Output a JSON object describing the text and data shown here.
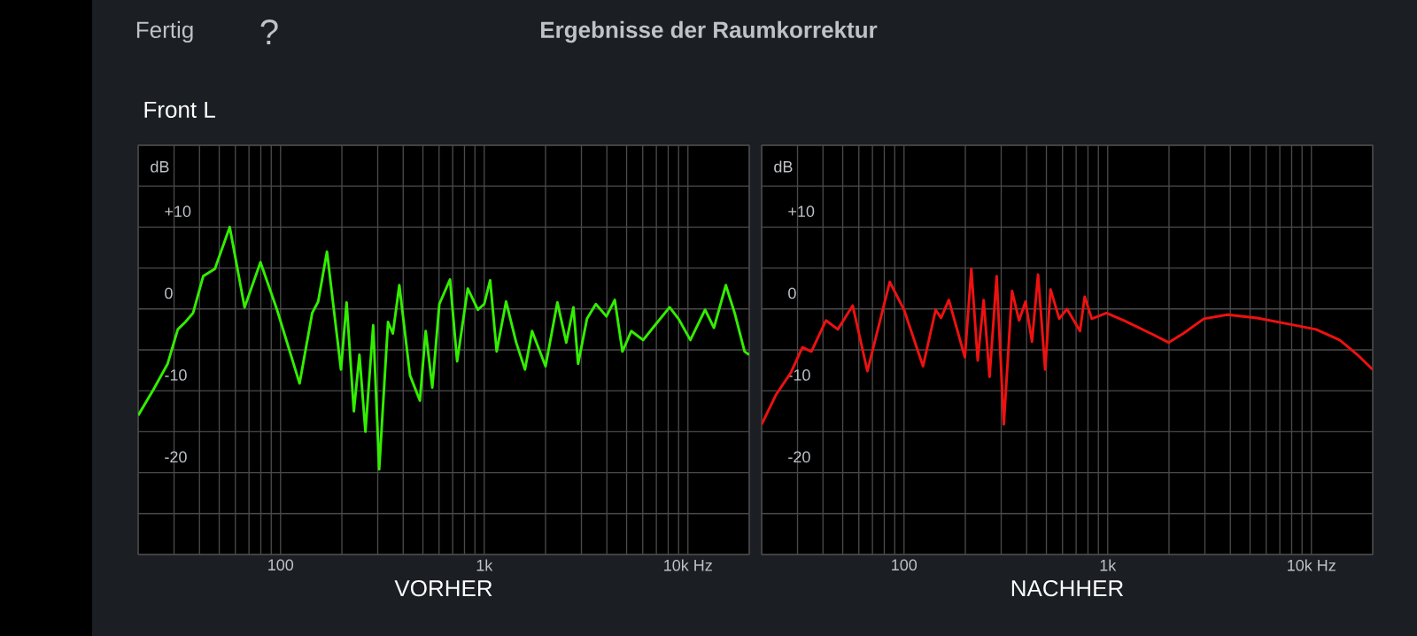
{
  "chart_data": [
    {
      "type": "line",
      "title": "Ergebnisse der Raumkorrektur",
      "subtitle": "Front L",
      "annotations": [
        "Fertig",
        "?"
      ],
      "xlabel": "VORHER",
      "ylabel": "dB",
      "log": "x",
      "grid": true,
      "xlim": [
        20,
        20000
      ],
      "ylim": [
        -30,
        20
      ],
      "xticks": [
        {
          "value": 20,
          "label": null
        },
        {
          "value": 30,
          "label": null
        },
        {
          "value": 40,
          "label": null
        },
        {
          "value": 50,
          "label": null
        },
        {
          "value": 60,
          "label": null
        },
        {
          "value": 70,
          "label": null
        },
        {
          "value": 80,
          "label": null
        },
        {
          "value": 90,
          "label": null
        },
        100,
        {
          "value": 200,
          "label": null
        },
        {
          "value": 300,
          "label": null
        },
        {
          "value": 400,
          "label": null
        },
        {
          "value": 500,
          "label": null
        },
        {
          "value": 600,
          "label": null
        },
        {
          "value": 700,
          "label": null
        },
        {
          "value": 800,
          "label": null
        },
        {
          "value": 900,
          "label": null
        },
        {
          "value": 1000,
          "label": "1k"
        },
        {
          "value": 2000,
          "label": null
        },
        {
          "value": 3000,
          "label": null
        },
        {
          "value": 4000,
          "label": null
        },
        {
          "value": 5000,
          "label": null
        },
        {
          "value": 6000,
          "label": null
        },
        {
          "value": 7000,
          "label": null
        },
        {
          "value": 8000,
          "label": null
        },
        {
          "value": 9000,
          "label": null
        },
        {
          "value": 10000,
          "label": "10k Hz"
        },
        {
          "value": 20000,
          "label": null
        }
      ],
      "yticks": [
        {
          "value": -30,
          "label": null
        },
        {
          "value": -25,
          "label": null
        },
        -20,
        {
          "value": -15,
          "label": null
        },
        -10,
        {
          "value": -5,
          "label": null
        },
        0,
        {
          "value": 5,
          "label": null
        },
        {
          "value": 10,
          "label": "+10"
        },
        {
          "value": 15,
          "label": null
        },
        {
          "value": 20,
          "label": null
        }
      ],
      "x": [
        20,
        23.7,
        27.9,
        31.3,
        34.1,
        37.2,
        41.7,
        47.6,
        56.3,
        66.6,
        79.7,
        96.1,
        124,
        143,
        153,
        169,
        198,
        211,
        229,
        244,
        261,
        285,
        305,
        337,
        356,
        383,
        432,
        483,
        516,
        556,
        602,
        679,
        736,
        830,
        930,
        1000,
        1069,
        1151,
        1280,
        1435,
        1585,
        1717,
        2000,
        2286,
        2528,
        2740,
        2890,
        3195,
        3531,
        3981,
        4375,
        4768,
        5272,
        6026,
        6887,
        8128,
        8990,
        10280,
        12140,
        13420,
        15350,
        16960,
        18980,
        20000
      ],
      "series": [
        {
          "color": "#33ee00",
          "values": [
            -13.0,
            -9.9,
            -6.7,
            -2.5,
            -1.6,
            -0.5,
            4.0,
            4.9,
            10.0,
            0.2,
            5.7,
            -0.1,
            -9.1,
            -0.5,
            0.9,
            7.0,
            -7.4,
            0.8,
            -12.5,
            -5.6,
            -15.0,
            -2.0,
            -19.6,
            -1.6,
            -3.0,
            2.9,
            -8.1,
            -11.2,
            -2.7,
            -9.6,
            0.6,
            3.6,
            -6.4,
            2.5,
            -0.1,
            0.6,
            3.5,
            -5.2,
            0.9,
            -4.1,
            -7.4,
            -2.7,
            -7.0,
            0.8,
            -4.1,
            0.2,
            -6.7,
            -1.2,
            0.6,
            -0.9,
            1.1,
            -5.2,
            -2.7,
            -3.8,
            -2.0,
            0.2,
            -1.2,
            -3.8,
            -0.1,
            -2.3,
            2.9,
            -0.5,
            -5.2,
            -5.6
          ]
        }
      ]
    },
    {
      "type": "line",
      "xlabel": "NACHHER",
      "ylabel": "dB",
      "log": "x",
      "grid": true,
      "xlim": [
        20,
        20000
      ],
      "ylim": [
        -30,
        20
      ],
      "xticks": [
        {
          "value": 20,
          "label": null
        },
        {
          "value": 30,
          "label": null
        },
        {
          "value": 40,
          "label": null
        },
        {
          "value": 50,
          "label": null
        },
        {
          "value": 60,
          "label": null
        },
        {
          "value": 70,
          "label": null
        },
        {
          "value": 80,
          "label": null
        },
        {
          "value": 90,
          "label": null
        },
        100,
        {
          "value": 200,
          "label": null
        },
        {
          "value": 300,
          "label": null
        },
        {
          "value": 400,
          "label": null
        },
        {
          "value": 500,
          "label": null
        },
        {
          "value": 600,
          "label": null
        },
        {
          "value": 700,
          "label": null
        },
        {
          "value": 800,
          "label": null
        },
        {
          "value": 900,
          "label": null
        },
        {
          "value": 1000,
          "label": "1k"
        },
        {
          "value": 2000,
          "label": null
        },
        {
          "value": 3000,
          "label": null
        },
        {
          "value": 4000,
          "label": null
        },
        {
          "value": 5000,
          "label": null
        },
        {
          "value": 6000,
          "label": null
        },
        {
          "value": 7000,
          "label": null
        },
        {
          "value": 8000,
          "label": null
        },
        {
          "value": 9000,
          "label": null
        },
        {
          "value": 10000,
          "label": "10k Hz"
        },
        {
          "value": 20000,
          "label": null
        }
      ],
      "yticks": [
        {
          "value": -30,
          "label": null
        },
        {
          "value": -25,
          "label": null
        },
        -20,
        {
          "value": -15,
          "label": null
        },
        -10,
        {
          "value": -5,
          "label": null
        },
        0,
        {
          "value": 5,
          "label": null
        },
        {
          "value": 10,
          "label": "+10"
        },
        {
          "value": 15,
          "label": null
        },
        {
          "value": 20,
          "label": null
        }
      ],
      "x": [
        20,
        23.5,
        27.8,
        31.7,
        35.1,
        41.4,
        47.3,
        56.0,
        66.1,
        85.1,
        100,
        124,
        143,
        152,
        166,
        199,
        214,
        230,
        246,
        263,
        285,
        309,
        339,
        367,
        395,
        425,
        455,
        493,
        524,
        578,
        631,
        731,
        771,
        835,
        986,
        1247,
        1629,
        1991,
        2350,
        2965,
        3873,
        5408,
        7551,
        10540,
        13770,
        16830,
        20000
      ],
      "series": [
        {
          "color": "#ee1111",
          "values": [
            -14.1,
            -10.5,
            -7.8,
            -4.7,
            -5.2,
            -1.4,
            -2.5,
            0.4,
            -7.6,
            3.3,
            -0.1,
            -7.0,
            -0.1,
            -1.1,
            1.1,
            -5.9,
            4.9,
            -6.3,
            1.1,
            -8.3,
            4.0,
            -14.1,
            2.2,
            -1.4,
            0.9,
            -4.0,
            4.2,
            -7.4,
            2.4,
            -1.2,
            0,
            -2.7,
            1.5,
            -1.2,
            -0.5,
            -1.6,
            -3.0,
            -4.1,
            -3.0,
            -1.2,
            -0.7,
            -1.1,
            -1.8,
            -2.5,
            -3.8,
            -5.6,
            -7.4
          ]
        }
      ]
    }
  ]
}
